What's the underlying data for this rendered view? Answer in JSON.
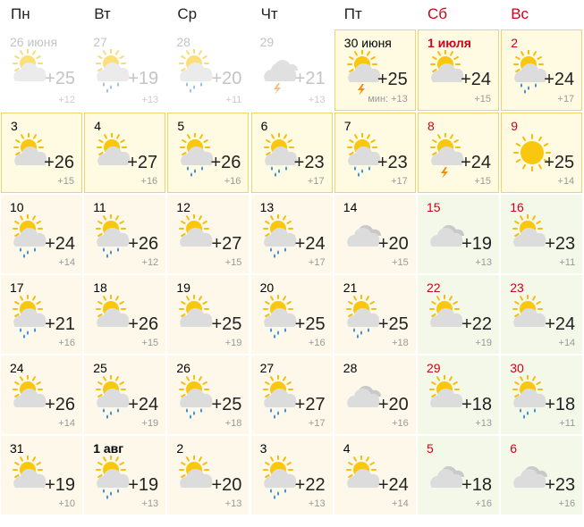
{
  "header": {
    "days": [
      "Пн",
      "Вт",
      "Ср",
      "Чт",
      "Пт",
      "Сб",
      "Вс"
    ]
  },
  "weeks": [
    [
      {
        "date": "26 июня",
        "day": "+25",
        "night": "+12",
        "icon": "partly"
      },
      {
        "date": "27",
        "day": "+19",
        "night": "+13",
        "icon": "partly-rain"
      },
      {
        "date": "28",
        "day": "+20",
        "night": "+11",
        "icon": "partly-rain"
      },
      {
        "date": "29",
        "day": "+21",
        "night": "+13",
        "icon": "cloudy-storm"
      },
      {
        "date": "30 июня",
        "day": "+25",
        "night": "мин: +13",
        "icon": "partly-storm"
      },
      {
        "date": "1 июля",
        "day": "+24",
        "night": "+15",
        "icon": "partly"
      },
      {
        "date": "2",
        "day": "+24",
        "night": "+17",
        "icon": "partly-rain"
      }
    ],
    [
      {
        "date": "3",
        "day": "+26",
        "night": "+15",
        "icon": "partly"
      },
      {
        "date": "4",
        "day": "+27",
        "night": "+16",
        "icon": "partly"
      },
      {
        "date": "5",
        "day": "+26",
        "night": "+16",
        "icon": "partly-rain"
      },
      {
        "date": "6",
        "day": "+23",
        "night": "+17",
        "icon": "partly-rain"
      },
      {
        "date": "7",
        "day": "+23",
        "night": "+17",
        "icon": "partly-rain"
      },
      {
        "date": "8",
        "day": "+24",
        "night": "+15",
        "icon": "partly-storm"
      },
      {
        "date": "9",
        "day": "+25",
        "night": "+14",
        "icon": "sun"
      }
    ],
    [
      {
        "date": "10",
        "day": "+24",
        "night": "+14",
        "icon": "partly-rain"
      },
      {
        "date": "11",
        "day": "+26",
        "night": "+12",
        "icon": "partly-rain"
      },
      {
        "date": "12",
        "day": "+27",
        "night": "+15",
        "icon": "partly"
      },
      {
        "date": "13",
        "day": "+24",
        "night": "+17",
        "icon": "partly-rain"
      },
      {
        "date": "14",
        "day": "+20",
        "night": "+15",
        "icon": "cloudy"
      },
      {
        "date": "15",
        "day": "+19",
        "night": "+13",
        "icon": "cloudy"
      },
      {
        "date": "16",
        "day": "+23",
        "night": "+11",
        "icon": "partly"
      }
    ],
    [
      {
        "date": "17",
        "day": "+21",
        "night": "+16",
        "icon": "partly-rain"
      },
      {
        "date": "18",
        "day": "+26",
        "night": "+15",
        "icon": "partly"
      },
      {
        "date": "19",
        "day": "+25",
        "night": "+19",
        "icon": "partly"
      },
      {
        "date": "20",
        "day": "+25",
        "night": "+16",
        "icon": "partly-rain"
      },
      {
        "date": "21",
        "day": "+25",
        "night": "+18",
        "icon": "partly-rain"
      },
      {
        "date": "22",
        "day": "+22",
        "night": "+19",
        "icon": "partly"
      },
      {
        "date": "23",
        "day": "+24",
        "night": "+14",
        "icon": "partly"
      }
    ],
    [
      {
        "date": "24",
        "day": "+26",
        "night": "+14",
        "icon": "partly"
      },
      {
        "date": "25",
        "day": "+24",
        "night": "+19",
        "icon": "partly-rain"
      },
      {
        "date": "26",
        "day": "+25",
        "night": "+18",
        "icon": "partly-rain"
      },
      {
        "date": "27",
        "day": "+27",
        "night": "+17",
        "icon": "partly-rain"
      },
      {
        "date": "28",
        "day": "+20",
        "night": "+16",
        "icon": "cloudy"
      },
      {
        "date": "29",
        "day": "+18",
        "night": "+13",
        "icon": "partly"
      },
      {
        "date": "30",
        "day": "+18",
        "night": "+11",
        "icon": "partly-rain"
      }
    ],
    [
      {
        "date": "31",
        "day": "+19",
        "night": "+10",
        "icon": "partly"
      },
      {
        "date": "1 авг",
        "day": "+19",
        "night": "+13",
        "icon": "partly-rain"
      },
      {
        "date": "2",
        "day": "+20",
        "night": "+13",
        "icon": "partly"
      },
      {
        "date": "3",
        "day": "+22",
        "night": "+13",
        "icon": "partly-rain"
      },
      {
        "date": "4",
        "day": "+24",
        "night": "+14",
        "icon": "partly"
      },
      {
        "date": "5",
        "day": "+18",
        "night": "+16",
        "icon": "cloudy"
      },
      {
        "date": "6",
        "day": "+23",
        "night": "+16",
        "icon": "cloudy"
      }
    ]
  ]
}
